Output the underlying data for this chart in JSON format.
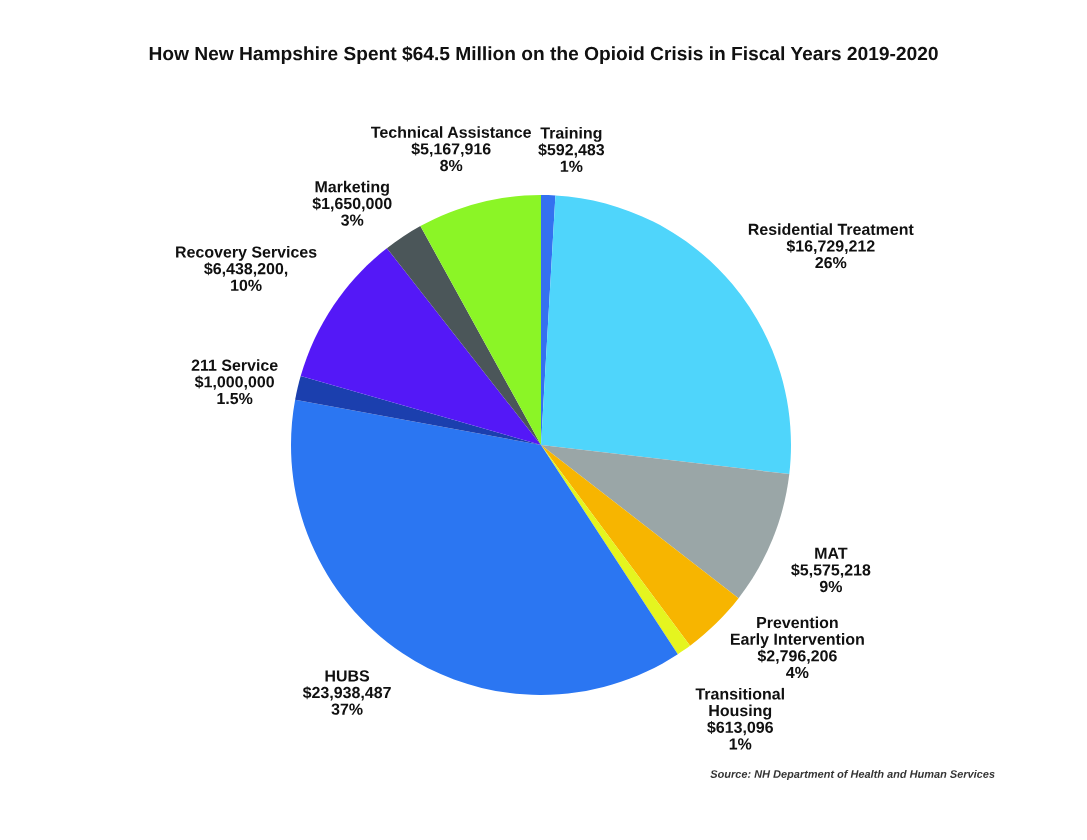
{
  "chart_data": {
    "type": "pie",
    "title": "How New Hampshire Spent $64.5 Million on the Opioid Crisis in Fiscal Years 2019-2020",
    "categories": [
      "Training",
      "Residential Treatment",
      "MAT",
      "Prevention\nEarly Intervention",
      "Transitional\nHousing",
      "HUBS",
      "211 Service",
      "Recovery Services",
      "Marketing",
      "Technical Assistance"
    ],
    "values": [
      592483,
      16729212,
      5575218,
      2796206,
      613096,
      23938487,
      1000000,
      6438200,
      1650000,
      5167916
    ],
    "value_labels": [
      "$592,483\n1%",
      "$16,729,212\n26%",
      "$5,575,218\n9%",
      "$2,796,206\n4%",
      "$613,096\n1%",
      "$23,938,487\n37%",
      "$1,000,000\n1.5%",
      "$6,438,200,\n10%",
      "$1,650,000\n3%",
      "$5,167,916\n8%"
    ],
    "colors": [
      "#3471f0",
      "#4fd5fb",
      "#9aa6a7",
      "#f7b500",
      "#e5f51f",
      "#2b76f2",
      "#1b3fae",
      "#5418f7",
      "#4b5659",
      "#8bf526"
    ],
    "annotations": [
      "Source: NH Department of Health and Human Services"
    ]
  }
}
